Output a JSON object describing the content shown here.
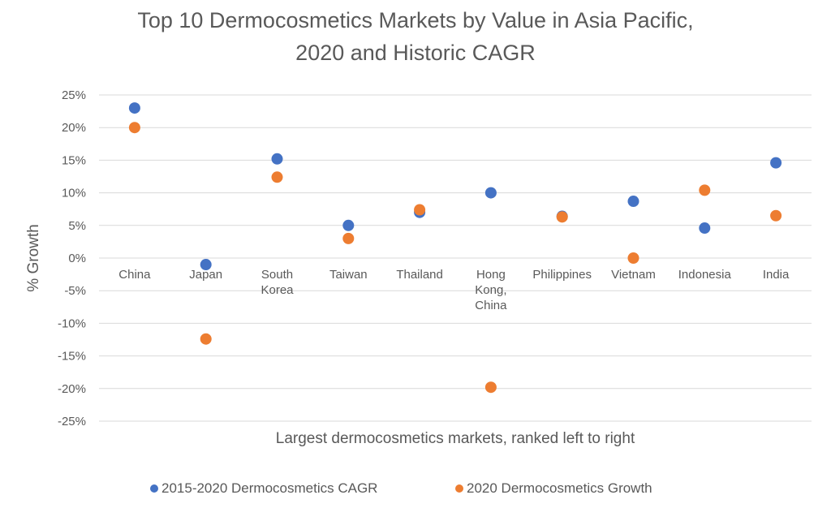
{
  "chart_data": {
    "type": "scatter",
    "title": "Top 10 Dermocosmetics Markets by Value in Asia Pacific,",
    "subtitle": "2020 and Historic CAGR",
    "xlabel": "Largest dermocosmetics markets, ranked left to right",
    "ylabel": "% Growth",
    "ylim": [
      -25,
      25
    ],
    "ytick_values": [
      25,
      20,
      15,
      10,
      5,
      0,
      -5,
      -10,
      -15,
      -20,
      -25
    ],
    "ytick_labels": [
      "25%",
      "20%",
      "15%",
      "10%",
      "5%",
      "0%",
      "-5%",
      "-10%",
      "-15%",
      "-20%",
      "-25%"
    ],
    "categories": [
      [
        "China"
      ],
      [
        "Japan"
      ],
      [
        "South",
        "Korea"
      ],
      [
        "Taiwan"
      ],
      [
        "Thailand"
      ],
      [
        "Hong",
        "Kong,",
        "China"
      ],
      [
        "Philippines"
      ],
      [
        "Vietnam"
      ],
      [
        "Indonesia"
      ],
      [
        "India"
      ]
    ],
    "legend_position": "bottom",
    "grid": true,
    "series": [
      {
        "name": "2015-2020 Dermocosmetics CAGR",
        "color": "#4472c4",
        "values": [
          23,
          -1,
          15.2,
          5,
          7,
          10,
          6.4,
          8.7,
          4.6,
          14.6
        ]
      },
      {
        "name": "2020 Dermocosmetics Growth",
        "color": "#ed7d31",
        "values": [
          20,
          -12.4,
          12.4,
          3,
          7.4,
          -19.8,
          6.3,
          0,
          10.4,
          6.5
        ]
      }
    ]
  }
}
